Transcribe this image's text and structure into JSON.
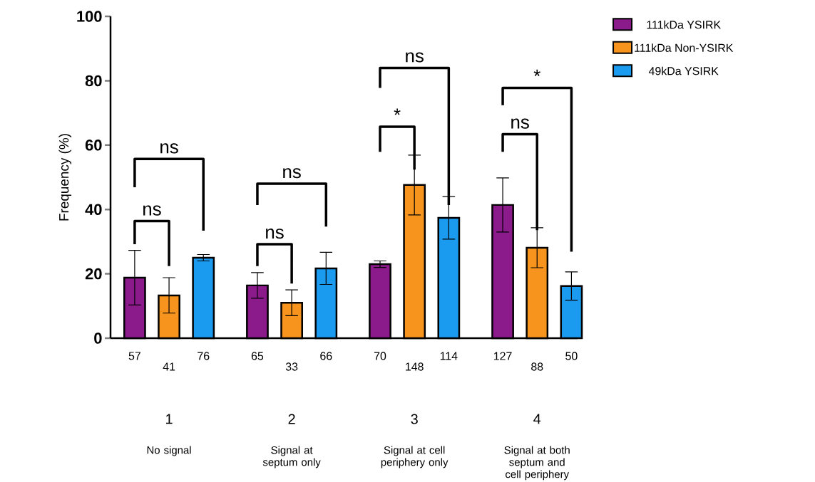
{
  "chart_data": {
    "type": "bar",
    "ylabel": "Frequency (%)",
    "categories": [
      "1",
      "2",
      "3",
      "4"
    ],
    "series": [
      {
        "name": "111kDa YSIRK",
        "color": "#8b1a8b",
        "values": [
          18.8,
          16.4,
          23,
          41.4
        ],
        "errors": [
          8.5,
          4,
          1,
          8.4
        ]
      },
      {
        "name": "111kDa Non-YSIRK",
        "color": "#f7941d",
        "values": [
          13.3,
          11,
          47.6,
          28.1
        ],
        "errors": [
          5.5,
          4,
          9.3,
          6.2
        ]
      },
      {
        "name": "49kDa YSIRK",
        "color": "#1a9bef",
        "values": [
          25,
          21.7,
          37.4,
          16.2
        ],
        "errors": [
          1,
          5,
          6.6,
          4.4
        ]
      }
    ],
    "ylim": [
      0,
      100
    ],
    "yticks": [
      0,
      20,
      40,
      60,
      80,
      100
    ],
    "legend": "top right",
    "annotations": [
      "57",
      "41",
      "76",
      "65",
      "33",
      "66",
      "70",
      "148",
      "114",
      "127",
      "88",
      "50",
      "No signal",
      "Signal at septum only",
      "Signal at cell periphery only",
      "Signal at both septum and cell periphery",
      "ns",
      "ns",
      "ns",
      "ns",
      "*",
      "ns",
      "ns",
      "*"
    ]
  }
}
